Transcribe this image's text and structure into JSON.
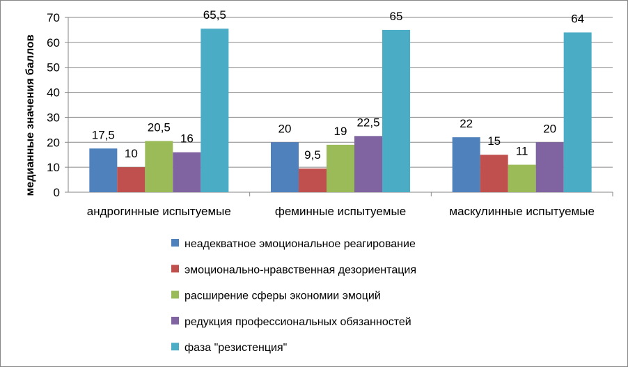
{
  "chart_data": {
    "type": "bar",
    "title": "",
    "xlabel": "",
    "ylabel": "медианные значения баллов",
    "ylim": [
      0,
      70
    ],
    "yticks": [
      0,
      10,
      20,
      30,
      40,
      50,
      60,
      70
    ],
    "grid": true,
    "legend_position": "bottom",
    "categories": [
      "андрогинные испытуемые",
      "феминные испытуемые",
      "маскулинные испытуемые"
    ],
    "series": [
      {
        "name": "неадекватное эмоциональное реагирование",
        "color": "#4F81BD",
        "values": [
          17.5,
          20,
          22
        ],
        "labels": [
          "17,5",
          "20",
          "22"
        ]
      },
      {
        "name": "эмоционально-нравственная дезориентация",
        "color": "#C0504D",
        "values": [
          10,
          9.5,
          15
        ],
        "labels": [
          "10",
          "9,5",
          "15"
        ]
      },
      {
        "name": "расширение сферы экономии эмоций",
        "color": "#9BBB59",
        "values": [
          20.5,
          19,
          11
        ],
        "labels": [
          "20,5",
          "19",
          "11"
        ]
      },
      {
        "name": "редукция профессиональных обязанностей",
        "color": "#8064A2",
        "values": [
          16,
          22.5,
          20
        ],
        "labels": [
          "16",
          "22,5",
          "20"
        ]
      },
      {
        "name": "фаза \"резистенция\"",
        "color": "#4BACC6",
        "values": [
          65.5,
          65,
          64
        ],
        "labels": [
          "65,5",
          "65",
          "64"
        ]
      }
    ]
  }
}
